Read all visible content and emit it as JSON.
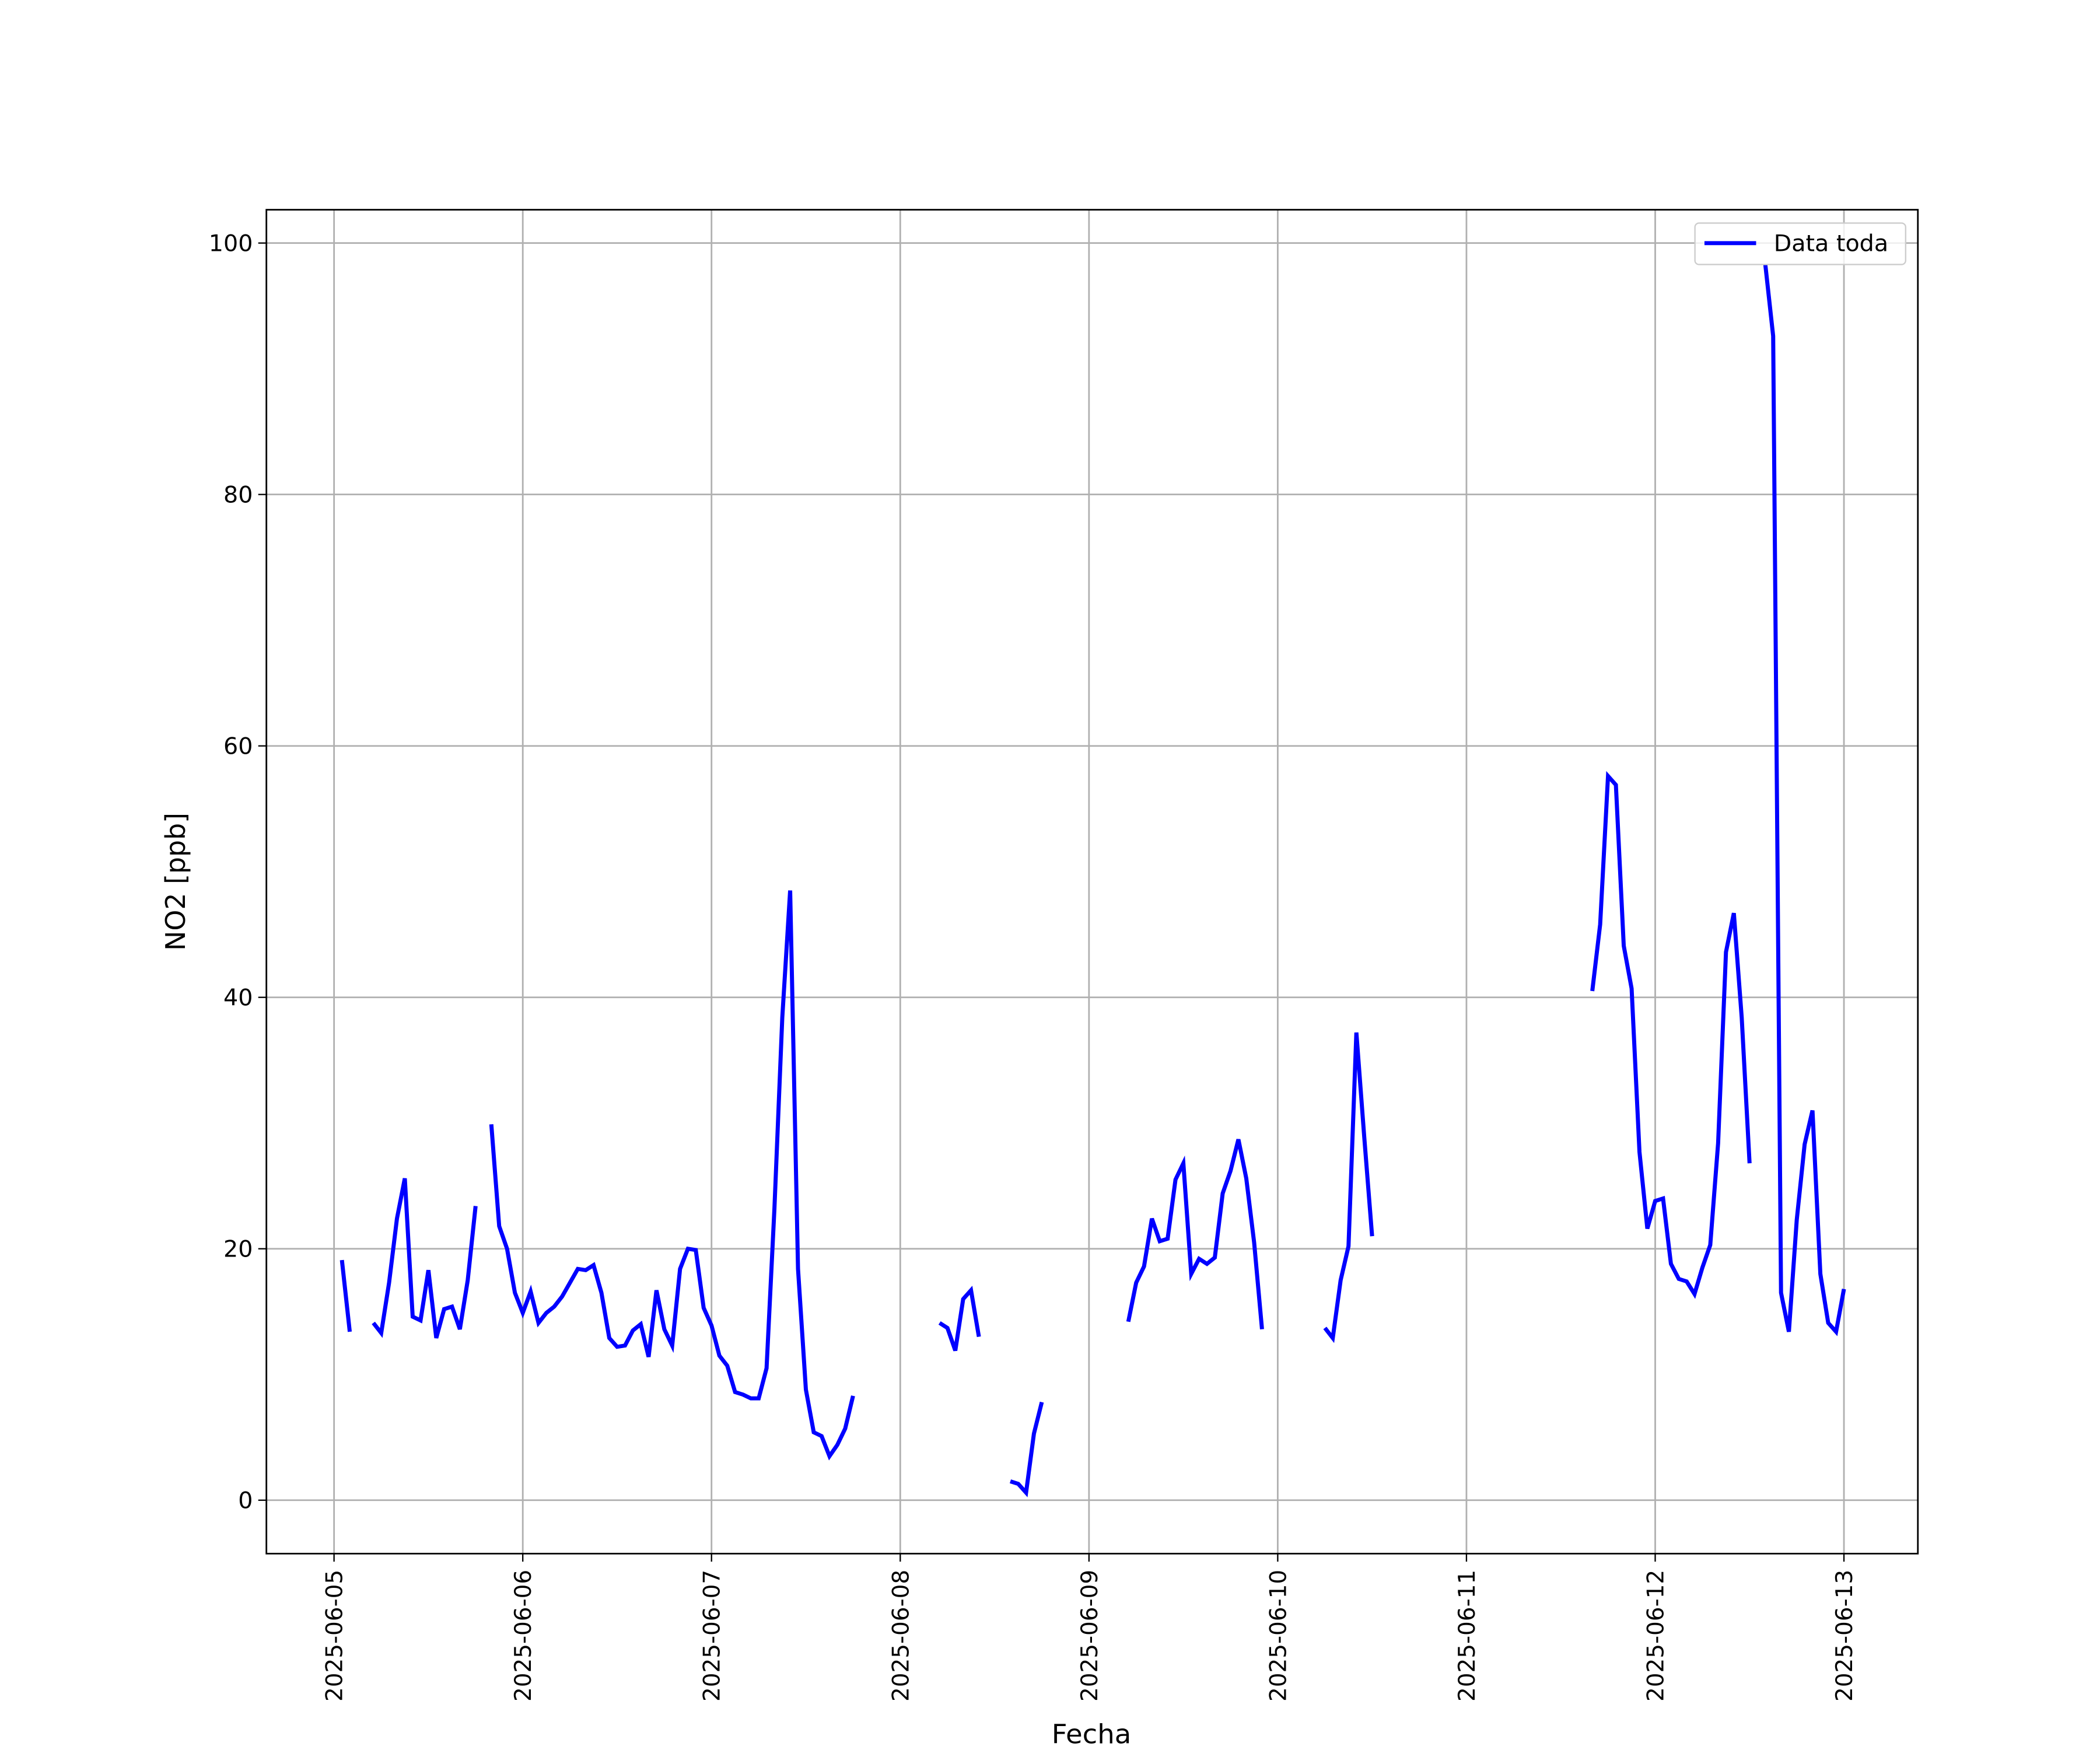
{
  "chart_data": {
    "type": "line",
    "xlabel": "Fecha",
    "ylabel": "NO2 [ppb]",
    "x": [
      1,
      2,
      3,
      4,
      5,
      6,
      7,
      8,
      9,
      10,
      11,
      12,
      13,
      14,
      15,
      16,
      17,
      18,
      19,
      20,
      21,
      22,
      23,
      24,
      25,
      26,
      27,
      28,
      29,
      30,
      31,
      32,
      33,
      34,
      35,
      36,
      37,
      38,
      39,
      40,
      41,
      42,
      43,
      44,
      45,
      46,
      47,
      48,
      49,
      50,
      51,
      52,
      53,
      54,
      55,
      56,
      57,
      58,
      59,
      60,
      61,
      62,
      63,
      64,
      65,
      66,
      67,
      68,
      69,
      70,
      71,
      72,
      73,
      74,
      75,
      76,
      77,
      78,
      79,
      80,
      81,
      82,
      83,
      84,
      85,
      86,
      87,
      88,
      89,
      90,
      91,
      92,
      93,
      94,
      95,
      96,
      97,
      98,
      99,
      100,
      101,
      102,
      103,
      104,
      105,
      106,
      107,
      108,
      109,
      110,
      111,
      112,
      113,
      114,
      115,
      116,
      117,
      118,
      119,
      120,
      121,
      122,
      123,
      124,
      125,
      126,
      127,
      128,
      129,
      130,
      131,
      132,
      133,
      134,
      135,
      136,
      137,
      138,
      139,
      140,
      141,
      142,
      143,
      144,
      145,
      146,
      147,
      148,
      149,
      150,
      151,
      152,
      153,
      154,
      155,
      156,
      157,
      158,
      159,
      160,
      161,
      162,
      163,
      164,
      165,
      166,
      167,
      168,
      169,
      170,
      171,
      172,
      173,
      174,
      175,
      176,
      177,
      178,
      179,
      180,
      181,
      182,
      183,
      184,
      185,
      186,
      187,
      188,
      189,
      190,
      191,
      192
    ],
    "series": [
      {
        "name": "Data toda",
        "color": "#0000ff",
        "values": [
          19.1,
          13.4,
          null,
          null,
          14.1,
          13.3,
          17.3,
          22.4,
          25.6,
          14.6,
          14.3,
          18.3,
          12.9,
          15.2,
          15.4,
          13.6,
          17.5,
          23.4,
          null,
          29.9,
          21.8,
          20.0,
          16.5,
          14.9,
          16.6,
          14.1,
          14.9,
          15.4,
          16.2,
          17.3,
          18.4,
          18.3,
          18.7,
          16.5,
          12.9,
          12.2,
          12.3,
          13.5,
          14.0,
          11.4,
          16.7,
          13.6,
          12.3,
          18.4,
          20.0,
          19.9,
          15.3,
          13.9,
          11.5,
          10.7,
          8.6,
          8.4,
          8.1,
          8.1,
          10.5,
          23.2,
          38.4,
          48.5,
          18.4,
          8.8,
          5.4,
          5.1,
          3.5,
          4.4,
          5.7,
          8.3,
          null,
          null,
          null,
          null,
          null,
          null,
          null,
          null,
          null,
          null,
          14.1,
          13.7,
          11.9,
          16.0,
          16.7,
          13.0,
          null,
          null,
          null,
          1.5,
          1.3,
          0.6,
          5.3,
          7.8,
          null,
          null,
          null,
          null,
          null,
          null,
          null,
          null,
          null,
          null,
          14.2,
          17.3,
          18.6,
          22.4,
          20.6,
          20.8,
          25.5,
          26.8,
          18.0,
          19.2,
          18.8,
          19.3,
          24.4,
          26.2,
          28.7,
          25.6,
          20.5,
          13.6,
          null,
          null,
          null,
          null,
          null,
          null,
          null,
          13.7,
          12.9,
          17.5,
          20.2,
          37.2,
          28.9,
          21.0,
          null,
          null,
          null,
          null,
          null,
          null,
          null,
          null,
          null,
          null,
          null,
          null,
          null,
          null,
          null,
          null,
          null,
          null,
          null,
          null,
          null,
          null,
          null,
          null,
          null,
          null,
          null,
          40.5,
          45.8,
          57.6,
          56.9,
          44.1,
          40.7,
          27.7,
          21.6,
          23.8,
          24.0,
          18.8,
          17.6,
          17.4,
          16.4,
          18.5,
          20.3,
          28.4,
          43.6,
          46.7,
          38.4,
          26.8,
          null,
          98.3,
          92.6,
          16.5,
          13.4,
          22.3,
          28.3,
          31.0,
          18.0,
          14.1,
          13.4,
          16.8
        ]
      }
    ],
    "xlim": [
      -8.6,
      201.4
    ],
    "xticks": [
      {
        "value": 0,
        "label": "2025-06-05"
      },
      {
        "value": 24,
        "label": "2025-06-06"
      },
      {
        "value": 48,
        "label": "2025-06-07"
      },
      {
        "value": 72,
        "label": "2025-06-08"
      },
      {
        "value": 96,
        "label": "2025-06-09"
      },
      {
        "value": 120,
        "label": "2025-06-10"
      },
      {
        "value": 144,
        "label": "2025-06-11"
      },
      {
        "value": 168,
        "label": "2025-06-12"
      },
      {
        "value": 192,
        "label": "2025-06-13"
      }
    ],
    "ylim": [
      -4.25,
      102.65
    ],
    "yticks": [
      0,
      20,
      40,
      60,
      80,
      100
    ],
    "grid": true,
    "legend": "upper right"
  }
}
